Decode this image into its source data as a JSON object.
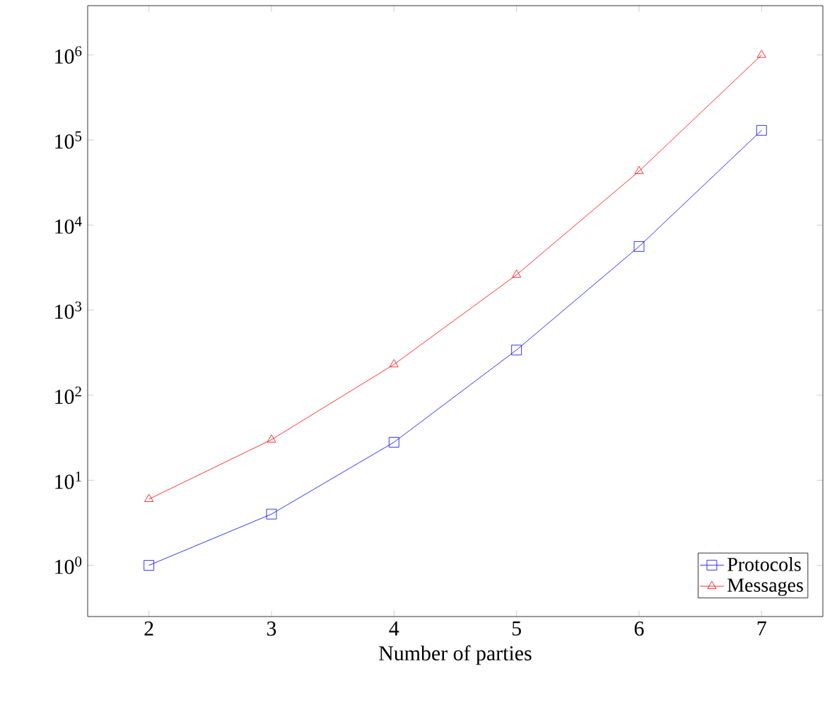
{
  "chart_data": {
    "type": "line",
    "xlabel": "Number of parties",
    "x": [
      2,
      3,
      4,
      5,
      6,
      7
    ],
    "series": [
      {
        "name": "Protocols",
        "color": "#0000ff",
        "marker": "square",
        "values": [
          1,
          4,
          28,
          340,
          5600,
          130000
        ]
      },
      {
        "name": "Messages",
        "color": "#ff0000",
        "marker": "triangle",
        "values": [
          6,
          30,
          230,
          2600,
          43000,
          1000000
        ]
      }
    ],
    "log": "y",
    "xlim": [
      1.5,
      7.5
    ],
    "ylim": [
      0.25,
      3800000
    ],
    "xticks": [
      2,
      3,
      4,
      5,
      6,
      7
    ],
    "yticks": [
      {
        "value": 1,
        "label": "10$^{0}$"
      },
      {
        "value": 10,
        "label": "10$^{1}$"
      },
      {
        "value": 100,
        "label": "10$^{2}$"
      },
      {
        "value": 1000,
        "label": "10$^{3}$"
      },
      {
        "value": 10000,
        "label": "10$^{4}$"
      },
      {
        "value": 100000,
        "label": "10$^{5}$"
      },
      {
        "value": 1000000,
        "label": "10$^{6}$"
      }
    ],
    "legend": "bottom right",
    "grid": false,
    "line_style": "solid"
  }
}
